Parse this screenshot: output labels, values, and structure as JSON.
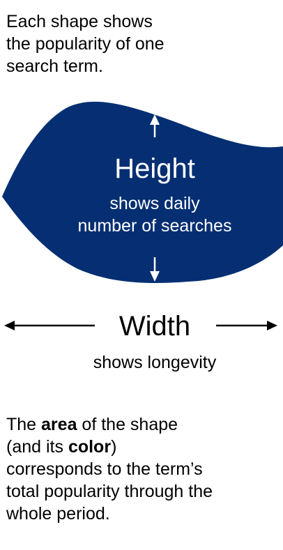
{
  "intro": {
    "text_line1": "Each shape shows",
    "text_line2": "the popularity of one",
    "text_line3": "search term."
  },
  "shape": {
    "fill_color": "#052f72",
    "height_label": "Height",
    "height_desc_line1": "shows daily",
    "height_desc_line2": "number of searches"
  },
  "width_legend": {
    "label": "Width",
    "desc": "shows longevity"
  },
  "explanation": {
    "line1_before": "The ",
    "line1_bold": "area",
    "line1_after": " of the shape",
    "line2_before": "(and its ",
    "line2_bold": "color",
    "line2_after": ")",
    "line3": "corresponds to the term’s",
    "line4": "total popularity through the",
    "line5": "whole period."
  }
}
